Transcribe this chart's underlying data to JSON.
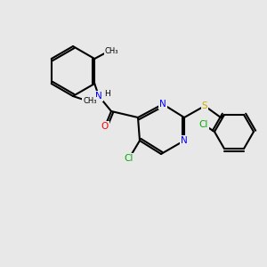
{
  "background_color": "#e8e8e8",
  "bond_color": "#000000",
  "bond_width": 1.5,
  "atom_colors": {
    "C": "#000000",
    "N": "#0000ff",
    "O": "#ff0000",
    "S": "#ccaa00",
    "Cl": "#00aa00",
    "H": "#000000"
  },
  "font_size": 7.5,
  "font_size_small": 6.5
}
